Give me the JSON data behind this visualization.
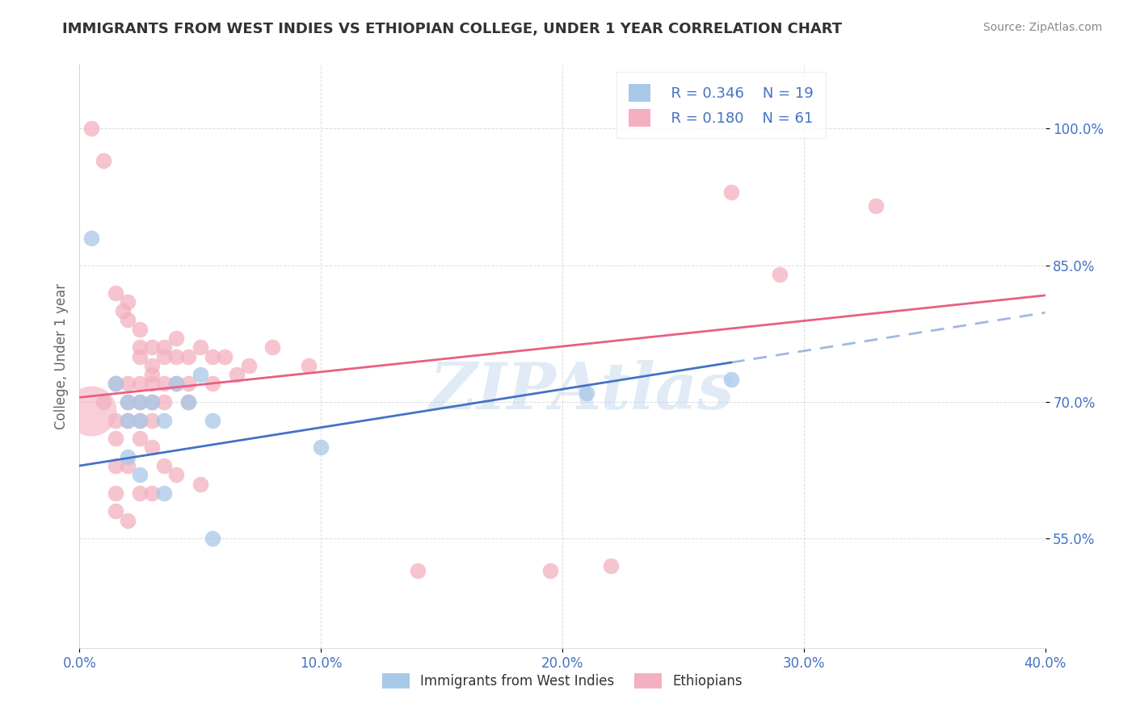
{
  "title": "IMMIGRANTS FROM WEST INDIES VS ETHIOPIAN COLLEGE, UNDER 1 YEAR CORRELATION CHART",
  "source_text": "Source: ZipAtlas.com",
  "ylabel": "College, Under 1 year",
  "xlim": [
    0.0,
    40.0
  ],
  "ylim": [
    43.0,
    107.0
  ],
  "xtick_labels": [
    "0.0%",
    "10.0%",
    "20.0%",
    "30.0%",
    "40.0%"
  ],
  "xtick_values": [
    0,
    10,
    20,
    30,
    40
  ],
  "ytick_labels": [
    "100.0%",
    "85.0%",
    "70.0%",
    "55.0%"
  ],
  "ytick_values": [
    100,
    85,
    70,
    55
  ],
  "legend_r1": "R = 0.346",
  "legend_n1": "N = 19",
  "legend_r2": "R = 0.180",
  "legend_n2": "N = 61",
  "label1": "Immigrants from West Indies",
  "label2": "Ethiopians",
  "color1": "#a8c8e8",
  "color2": "#f4b0c0",
  "trendline1_color": "#4472c4",
  "trendline2_color": "#e86080",
  "watermark": "ZIPAtlas",
  "blue_points": [
    [
      0.5,
      88.0
    ],
    [
      1.5,
      72.0
    ],
    [
      2.0,
      70.0
    ],
    [
      2.0,
      68.0
    ],
    [
      2.5,
      70.0
    ],
    [
      2.5,
      68.0
    ],
    [
      3.0,
      70.0
    ],
    [
      3.5,
      68.0
    ],
    [
      4.0,
      72.0
    ],
    [
      4.5,
      70.0
    ],
    [
      5.0,
      73.0
    ],
    [
      5.5,
      68.0
    ],
    [
      10.0,
      65.0
    ],
    [
      21.0,
      71.0
    ],
    [
      27.0,
      72.5
    ],
    [
      2.0,
      64.0
    ],
    [
      2.5,
      62.0
    ],
    [
      3.5,
      60.0
    ],
    [
      5.5,
      55.0
    ]
  ],
  "blue_sizes": [
    200,
    200,
    200,
    200,
    200,
    200,
    200,
    200,
    200,
    200,
    200,
    200,
    200,
    200,
    200,
    200,
    200,
    200,
    200
  ],
  "large_blue_idx": -1,
  "pink_points": [
    [
      0.5,
      100.0
    ],
    [
      1.0,
      96.5
    ],
    [
      1.5,
      82.0
    ],
    [
      1.8,
      80.0
    ],
    [
      2.0,
      81.0
    ],
    [
      2.0,
      79.0
    ],
    [
      2.5,
      78.0
    ],
    [
      2.5,
      76.0
    ],
    [
      2.5,
      75.0
    ],
    [
      3.0,
      76.0
    ],
    [
      3.0,
      74.0
    ],
    [
      3.0,
      73.0
    ],
    [
      3.5,
      76.0
    ],
    [
      3.5,
      75.0
    ],
    [
      4.0,
      77.0
    ],
    [
      4.0,
      75.0
    ],
    [
      4.5,
      75.0
    ],
    [
      5.0,
      76.0
    ],
    [
      5.5,
      75.0
    ],
    [
      6.0,
      75.0
    ],
    [
      6.5,
      73.0
    ],
    [
      7.0,
      74.0
    ],
    [
      8.0,
      76.0
    ],
    [
      9.5,
      74.0
    ],
    [
      1.5,
      72.0
    ],
    [
      2.0,
      72.0
    ],
    [
      2.5,
      72.0
    ],
    [
      3.0,
      72.0
    ],
    [
      3.5,
      72.0
    ],
    [
      4.0,
      72.0
    ],
    [
      4.5,
      72.0
    ],
    [
      5.5,
      72.0
    ],
    [
      1.0,
      70.0
    ],
    [
      2.0,
      70.0
    ],
    [
      2.5,
      70.0
    ],
    [
      3.0,
      70.0
    ],
    [
      3.5,
      70.0
    ],
    [
      4.5,
      70.0
    ],
    [
      1.5,
      68.0
    ],
    [
      2.0,
      68.0
    ],
    [
      2.5,
      68.0
    ],
    [
      3.0,
      68.0
    ],
    [
      1.5,
      66.0
    ],
    [
      2.5,
      66.0
    ],
    [
      3.0,
      65.0
    ],
    [
      1.5,
      63.0
    ],
    [
      2.0,
      63.0
    ],
    [
      3.5,
      63.0
    ],
    [
      4.0,
      62.0
    ],
    [
      5.0,
      61.0
    ],
    [
      1.5,
      60.0
    ],
    [
      2.5,
      60.0
    ],
    [
      3.0,
      60.0
    ],
    [
      1.5,
      58.0
    ],
    [
      2.0,
      57.0
    ],
    [
      14.0,
      51.5
    ],
    [
      19.5,
      51.5
    ],
    [
      22.0,
      52.0
    ],
    [
      27.0,
      93.0
    ],
    [
      29.0,
      84.0
    ],
    [
      33.0,
      91.5
    ]
  ],
  "large_pink_x": 0.5,
  "large_pink_y": 69.0,
  "large_pink_size": 2000,
  "blue_intercept": 63.0,
  "blue_slope": 0.42,
  "blue_solid_end": 27.0,
  "pink_intercept": 70.5,
  "pink_slope": 0.28,
  "background_color": "#ffffff",
  "grid_color": "#cccccc",
  "tick_color": "#4472c4",
  "axis_label_color": "#666666",
  "title_color": "#333333",
  "r_value_color": "#4472c4"
}
